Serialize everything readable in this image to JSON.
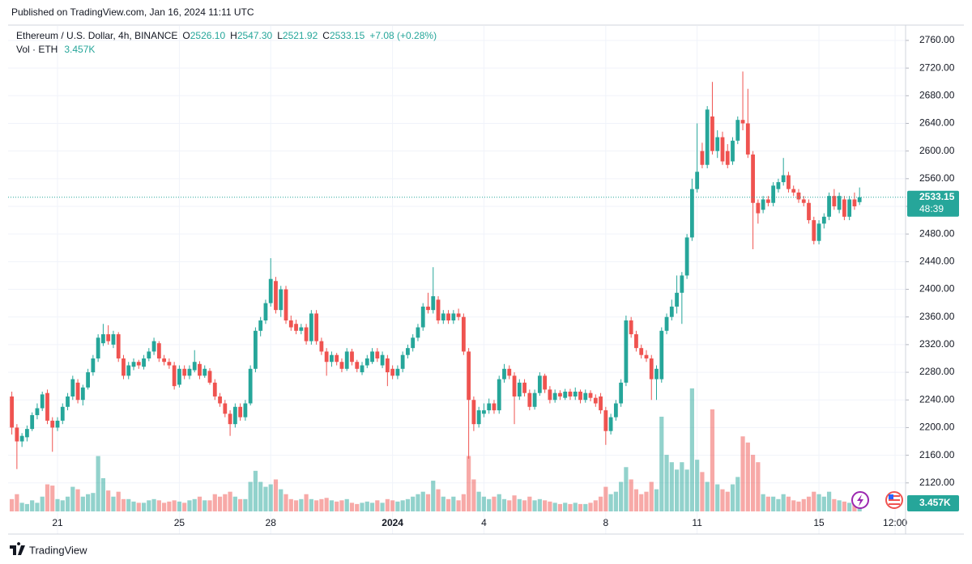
{
  "header": {
    "published": "Published on TradingView.com, Jan 16, 2024 11:11 UTC",
    "footer": "TradingView"
  },
  "chart_data": {
    "type": "candlestick",
    "symbol": "Ethereum / U.S. Dollar, 4h, BINANCE",
    "legend": {
      "open_label": "O",
      "open": "2526.10",
      "high_label": "H",
      "high": "2547.30",
      "low_label": "L",
      "low": "2521.92",
      "close_label": "C",
      "close": "2533.15",
      "change": "+7.08 (+0.28%)",
      "volume_title": "Vol · ETH",
      "volume": "3.457K"
    },
    "categories": [
      null,
      null,
      null,
      null,
      null,
      null,
      null,
      null,
      null,
      "21",
      null,
      null,
      null,
      null,
      null,
      null,
      null,
      null,
      null,
      null,
      null,
      null,
      null,
      null,
      null,
      null,
      null,
      null,
      null,
      null,
      null,
      null,
      null,
      "25",
      null,
      null,
      null,
      null,
      null,
      null,
      null,
      null,
      null,
      null,
      null,
      null,
      null,
      null,
      null,
      null,
      null,
      "28",
      null,
      null,
      null,
      null,
      null,
      null,
      null,
      null,
      null,
      null,
      null,
      null,
      null,
      null,
      null,
      null,
      null,
      null,
      null,
      null,
      null,
      null,
      null,
      "2024",
      null,
      null,
      null,
      null,
      null,
      null,
      null,
      null,
      null,
      null,
      null,
      null,
      null,
      null,
      null,
      null,
      null,
      "4",
      null,
      null,
      null,
      null,
      null,
      null,
      null,
      null,
      null,
      null,
      null,
      null,
      null,
      null,
      null,
      null,
      null,
      null,
      null,
      null,
      null,
      null,
      null,
      "8",
      null,
      null,
      null,
      null,
      null,
      null,
      null,
      null,
      null,
      null,
      null,
      null,
      null,
      null,
      null,
      null,
      null,
      "11",
      null,
      null,
      null,
      null,
      null,
      null,
      null,
      null,
      null,
      null,
      null,
      null,
      null,
      null,
      null,
      null,
      null,
      null,
      null,
      null,
      null,
      null,
      null,
      "15",
      null,
      null,
      null,
      null,
      null,
      null,
      null,
      null,
      null,
      null,
      null,
      null,
      null,
      null,
      "12:00"
    ],
    "open": [
      2245,
      2200,
      2180,
      2186,
      2198,
      2218,
      2228,
      2250,
      2210,
      2200,
      2210,
      2230,
      2245,
      2265,
      2240,
      2258,
      2280,
      2300,
      2322,
      2335,
      2320,
      2335,
      2300,
      2275,
      2288,
      2295,
      2288,
      2300,
      2310,
      2322,
      2300,
      2295,
      2290,
      2262,
      2285,
      2275,
      2283,
      2292,
      2275,
      2282,
      2265,
      2245,
      2235,
      2220,
      2205,
      2230,
      2215,
      2235,
      2285,
      2340,
      2355,
      2380,
      2412,
      2370,
      2400,
      2355,
      2350,
      2340,
      2345,
      2325,
      2365,
      2325,
      2310,
      2295,
      2305,
      2295,
      2285,
      2310,
      2295,
      2280,
      2290,
      2295,
      2310,
      2290,
      2300,
      2285,
      2275,
      2285,
      2305,
      2315,
      2330,
      2345,
      2375,
      2370,
      2385,
      2355,
      2365,
      2355,
      2365,
      2360,
      2310,
      2240,
      2205,
      2220,
      2225,
      2235,
      2225,
      2270,
      2285,
      2275,
      2245,
      2265,
      2250,
      2230,
      2250,
      2275,
      2255,
      2240,
      2250,
      2243,
      2252,
      2245,
      2252,
      2240,
      2250,
      2243,
      2245,
      2225,
      2195,
      2215,
      2235,
      2265,
      2355,
      2335,
      2315,
      2305,
      2300,
      2270,
      2270,
      2340,
      2360,
      2375,
      2395,
      2420,
      2475,
      2545,
      2600,
      2580,
      2650,
      2600,
      2620,
      2600,
      2585,
      2615,
      2645,
      2640,
      2595,
      2525,
      2515,
      2530,
      2525,
      2545,
      2555,
      2565,
      2545,
      2540,
      2530,
      2525,
      2500,
      2470,
      2495,
      2505,
      2535,
      2515,
      2530,
      2505,
      2530,
      2526.1,
      null,
      null,
      null,
      null,
      null,
      null,
      null
    ],
    "high": [
      2252,
      2205,
      2192,
      2203,
      2222,
      2235,
      2252,
      2255,
      2215,
      2215,
      2235,
      2250,
      2275,
      2270,
      2262,
      2285,
      2305,
      2335,
      2350,
      2348,
      2340,
      2338,
      2305,
      2295,
      2300,
      2298,
      2305,
      2315,
      2330,
      2325,
      2305,
      2300,
      2295,
      2290,
      2290,
      2290,
      2312,
      2296,
      2290,
      2286,
      2270,
      2250,
      2240,
      2225,
      2235,
      2235,
      2240,
      2290,
      2345,
      2360,
      2385,
      2445,
      2418,
      2405,
      2405,
      2362,
      2356,
      2350,
      2350,
      2370,
      2370,
      2330,
      2315,
      2310,
      2308,
      2300,
      2315,
      2314,
      2298,
      2295,
      2305,
      2315,
      2315,
      2310,
      2305,
      2290,
      2290,
      2310,
      2320,
      2335,
      2350,
      2380,
      2395,
      2432,
      2390,
      2370,
      2370,
      2370,
      2372,
      2365,
      2315,
      2245,
      2230,
      2235,
      2242,
      2240,
      2275,
      2292,
      2290,
      2280,
      2270,
      2270,
      2255,
      2255,
      2280,
      2278,
      2260,
      2255,
      2254,
      2256,
      2256,
      2258,
      2255,
      2255,
      2254,
      2248,
      2250,
      2230,
      2220,
      2240,
      2270,
      2362,
      2360,
      2340,
      2320,
      2312,
      2305,
      2290,
      2345,
      2365,
      2385,
      2420,
      2425,
      2480,
      2560,
      2640,
      2612,
      2665,
      2700,
      2630,
      2628,
      2610,
      2620,
      2650,
      2715,
      2690,
      2600,
      2530,
      2535,
      2535,
      2555,
      2560,
      2590,
      2570,
      2550,
      2545,
      2535,
      2530,
      2505,
      2500,
      2510,
      2540,
      2545,
      2540,
      2535,
      2535,
      2540,
      2547.3,
      null,
      null,
      null,
      null,
      null,
      null,
      null
    ],
    "low": [
      2190,
      2140,
      2172,
      2180,
      2195,
      2212,
      2224,
      2205,
      2165,
      2195,
      2205,
      2225,
      2240,
      2235,
      2232,
      2255,
      2275,
      2295,
      2318,
      2320,
      2315,
      2295,
      2270,
      2270,
      2283,
      2285,
      2284,
      2296,
      2305,
      2295,
      2290,
      2285,
      2255,
      2258,
      2270,
      2270,
      2280,
      2270,
      2272,
      2262,
      2240,
      2230,
      2215,
      2188,
      2200,
      2210,
      2210,
      2232,
      2280,
      2332,
      2350,
      2375,
      2365,
      2360,
      2350,
      2340,
      2335,
      2335,
      2320,
      2320,
      2320,
      2305,
      2275,
      2288,
      2290,
      2280,
      2282,
      2290,
      2280,
      2276,
      2286,
      2292,
      2295,
      2286,
      2260,
      2270,
      2270,
      2280,
      2300,
      2310,
      2325,
      2340,
      2365,
      2365,
      2350,
      2350,
      2350,
      2350,
      2355,
      2305,
      2155,
      2195,
      2200,
      2215,
      2220,
      2220,
      2220,
      2265,
      2270,
      2205,
      2240,
      2245,
      2225,
      2226,
      2246,
      2250,
      2235,
      2236,
      2240,
      2240,
      2240,
      2240,
      2235,
      2236,
      2238,
      2230,
      2220,
      2175,
      2190,
      2210,
      2230,
      2260,
      2330,
      2310,
      2300,
      2295,
      2240,
      2240,
      2265,
      2335,
      2355,
      2365,
      2350,
      2415,
      2470,
      2540,
      2575,
      2575,
      2595,
      2590,
      2580,
      2575,
      2580,
      2610,
      2630,
      2590,
      2458,
      2495,
      2510,
      2520,
      2520,
      2540,
      2550,
      2540,
      2535,
      2525,
      2520,
      2495,
      2465,
      2465,
      2488,
      2500,
      2515,
      2510,
      2500,
      2500,
      2515,
      2521.92,
      null,
      null,
      null,
      null,
      null,
      null,
      null
    ],
    "close": [
      2200,
      2180,
      2188,
      2198,
      2218,
      2228,
      2248,
      2210,
      2200,
      2210,
      2230,
      2245,
      2270,
      2240,
      2258,
      2280,
      2300,
      2330,
      2335,
      2325,
      2335,
      2300,
      2275,
      2290,
      2295,
      2290,
      2300,
      2310,
      2325,
      2300,
      2295,
      2290,
      2260,
      2285,
      2275,
      2285,
      2295,
      2275,
      2285,
      2265,
      2245,
      2235,
      2220,
      2205,
      2230,
      2215,
      2235,
      2285,
      2340,
      2355,
      2380,
      2415,
      2370,
      2400,
      2355,
      2345,
      2340,
      2345,
      2325,
      2365,
      2325,
      2310,
      2295,
      2305,
      2295,
      2285,
      2310,
      2295,
      2285,
      2290,
      2300,
      2310,
      2300,
      2305,
      2280,
      2275,
      2285,
      2305,
      2315,
      2330,
      2345,
      2375,
      2370,
      2390,
      2355,
      2365,
      2355,
      2365,
      2360,
      2310,
      2240,
      2205,
      2225,
      2225,
      2235,
      2225,
      2270,
      2285,
      2275,
      2245,
      2265,
      2250,
      2230,
      2250,
      2275,
      2255,
      2240,
      2250,
      2245,
      2252,
      2245,
      2252,
      2240,
      2250,
      2243,
      2235,
      2225,
      2195,
      2215,
      2235,
      2265,
      2355,
      2335,
      2315,
      2305,
      2300,
      2270,
      2285,
      2340,
      2360,
      2375,
      2395,
      2420,
      2475,
      2545,
      2570,
      2580,
      2660,
      2600,
      2620,
      2585,
      2580,
      2615,
      2645,
      2640,
      2595,
      2525,
      2510,
      2530,
      2525,
      2550,
      2555,
      2565,
      2545,
      2540,
      2530,
      2525,
      2500,
      2470,
      2495,
      2505,
      2535,
      2520,
      2535,
      2505,
      2530,
      2520,
      2533.15,
      null,
      null,
      null,
      null,
      null,
      null,
      null
    ],
    "volume": [
      10,
      14,
      7,
      6,
      9,
      7,
      12,
      22,
      21,
      10,
      9,
      12,
      20,
      18,
      12,
      14,
      15,
      45,
      27,
      17,
      12,
      16,
      10,
      10,
      8,
      7,
      7,
      9,
      10,
      9,
      7,
      8,
      9,
      8,
      7,
      9,
      10,
      12,
      9,
      9,
      14,
      12,
      14,
      16,
      12,
      10,
      10,
      24,
      33,
      24,
      20,
      22,
      26,
      18,
      14,
      10,
      9,
      10,
      14,
      10,
      9,
      10,
      11,
      9,
      8,
      9,
      10,
      7,
      6,
      7,
      8,
      7,
      9,
      7,
      10,
      9,
      8,
      9,
      10,
      12,
      14,
      16,
      14,
      25,
      18,
      12,
      10,
      12,
      9,
      14,
      45,
      26,
      16,
      12,
      10,
      12,
      14,
      10,
      9,
      13,
      10,
      9,
      12,
      9,
      10,
      9,
      8,
      7,
      6,
      7,
      6,
      7,
      6,
      6,
      7,
      9,
      12,
      20,
      14,
      16,
      24,
      36,
      26,
      18,
      14,
      16,
      24,
      18,
      77,
      46,
      40,
      34,
      40,
      34,
      100,
      42,
      32,
      24,
      83,
      22,
      18,
      16,
      22,
      28,
      61,
      56,
      46,
      40,
      14,
      12,
      12,
      10,
      14,
      12,
      9,
      8,
      10,
      12,
      16,
      14,
      12,
      16,
      10,
      9,
      8,
      7,
      6,
      3.457,
      null,
      null,
      null,
      null,
      null,
      null,
      null
    ],
    "up_color": "#26a69a",
    "down_color": "#ef5350",
    "ylim": [
      2046,
      2781
    ],
    "yticks": [
      {
        "value": 2120,
        "label": "2120.00"
      },
      {
        "value": 2160,
        "label": "2160.00"
      },
      {
        "value": 2200,
        "label": "2200.00"
      },
      {
        "value": 2240,
        "label": "2240.00"
      },
      {
        "value": 2280,
        "label": "2280.00"
      },
      {
        "value": 2320,
        "label": "2320.00"
      },
      {
        "value": 2360,
        "label": "2360.00"
      },
      {
        "value": 2400,
        "label": "2400.00"
      },
      {
        "value": 2440,
        "label": "2440.00"
      },
      {
        "value": 2480,
        "label": "2480.00"
      },
      {
        "value": 2520,
        "label": "2520.00"
      },
      {
        "value": 2560,
        "label": "2560.00"
      },
      {
        "value": 2600,
        "label": "2600.00"
      },
      {
        "value": 2640,
        "label": "2640.00"
      },
      {
        "value": 2680,
        "label": "2680.00"
      },
      {
        "value": 2720,
        "label": "2720.00"
      },
      {
        "value": 2760,
        "label": "2760.00"
      }
    ],
    "last_price": {
      "value": 2533.15,
      "label": "2533.15"
    },
    "countdown": "48:39",
    "grid": true
  }
}
